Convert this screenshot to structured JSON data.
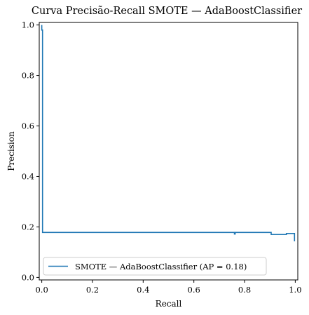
{
  "chart_data": {
    "type": "line",
    "title": "Curva Precisão-Recall SMOTE — AdaBoostClassifier",
    "xlabel": "Recall",
    "ylabel": "Precision",
    "xlim": [
      -0.01,
      1.01
    ],
    "ylim": [
      -0.01,
      1.01
    ],
    "xticks": [
      0.0,
      0.2,
      0.4,
      0.6,
      0.8,
      1.0
    ],
    "yticks": [
      0.0,
      0.2,
      0.4,
      0.6,
      0.8,
      1.0
    ],
    "xtick_labels": [
      "0.0",
      "0.2",
      "0.4",
      "0.6",
      "0.8",
      "1.0"
    ],
    "ytick_labels": [
      "0.0",
      "0.2",
      "0.4",
      "0.6",
      "0.8",
      "1.0"
    ],
    "grid": false,
    "legend_position": "lower-left",
    "series": [
      {
        "name": "SMOTE — AdaBoostClassifier (AP = 0.18)",
        "color": "#1f77b4",
        "x": [
          0.0,
          0.0,
          0.003,
          0.003,
          0.76,
          0.76,
          0.763,
          0.763,
          0.905,
          0.905,
          0.965,
          0.965,
          0.997,
          0.997
        ],
        "y": [
          1.0,
          0.98,
          0.98,
          0.178,
          0.178,
          0.172,
          0.172,
          0.178,
          0.178,
          0.17,
          0.17,
          0.174,
          0.174,
          0.143
        ]
      }
    ]
  }
}
